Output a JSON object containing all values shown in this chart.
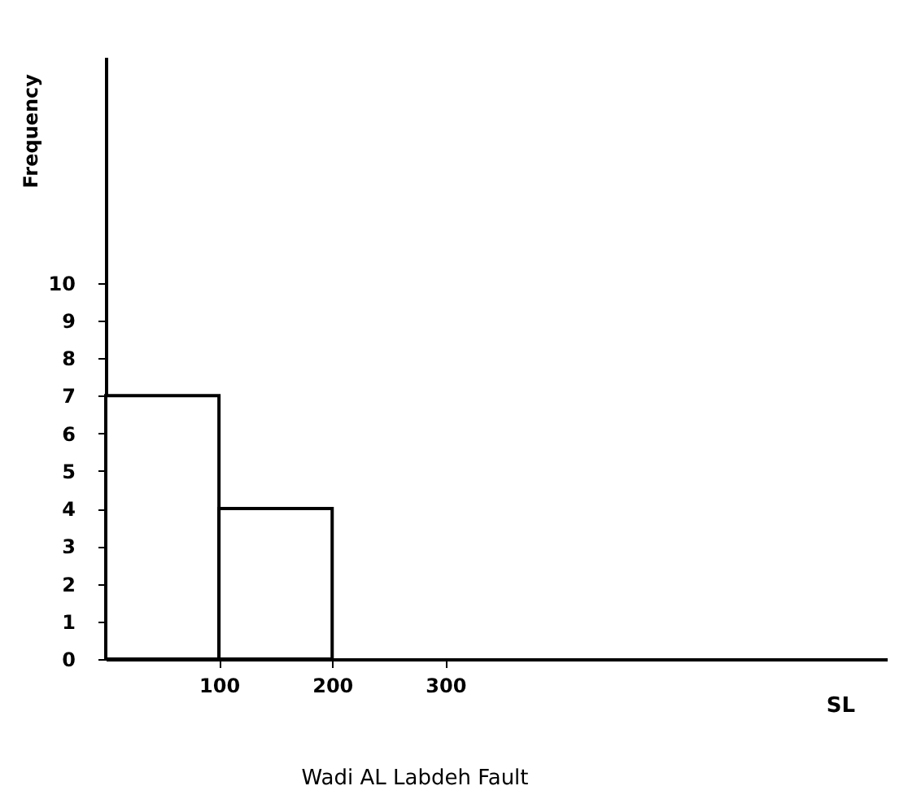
{
  "chart_data": {
    "type": "histogram",
    "title": "Wadi AL Labdeh Fault",
    "xlabel": "SL",
    "ylabel": "Frequency",
    "bins": [
      0,
      100,
      200
    ],
    "values": [
      7,
      4
    ],
    "color": "#000000",
    "xlim": [
      0,
      690
    ],
    "xticks": [
      100,
      200,
      300
    ],
    "ylim": [
      0,
      16
    ],
    "yticks": [
      0,
      1,
      2,
      3,
      4,
      5,
      6,
      7,
      8,
      9,
      10
    ]
  }
}
